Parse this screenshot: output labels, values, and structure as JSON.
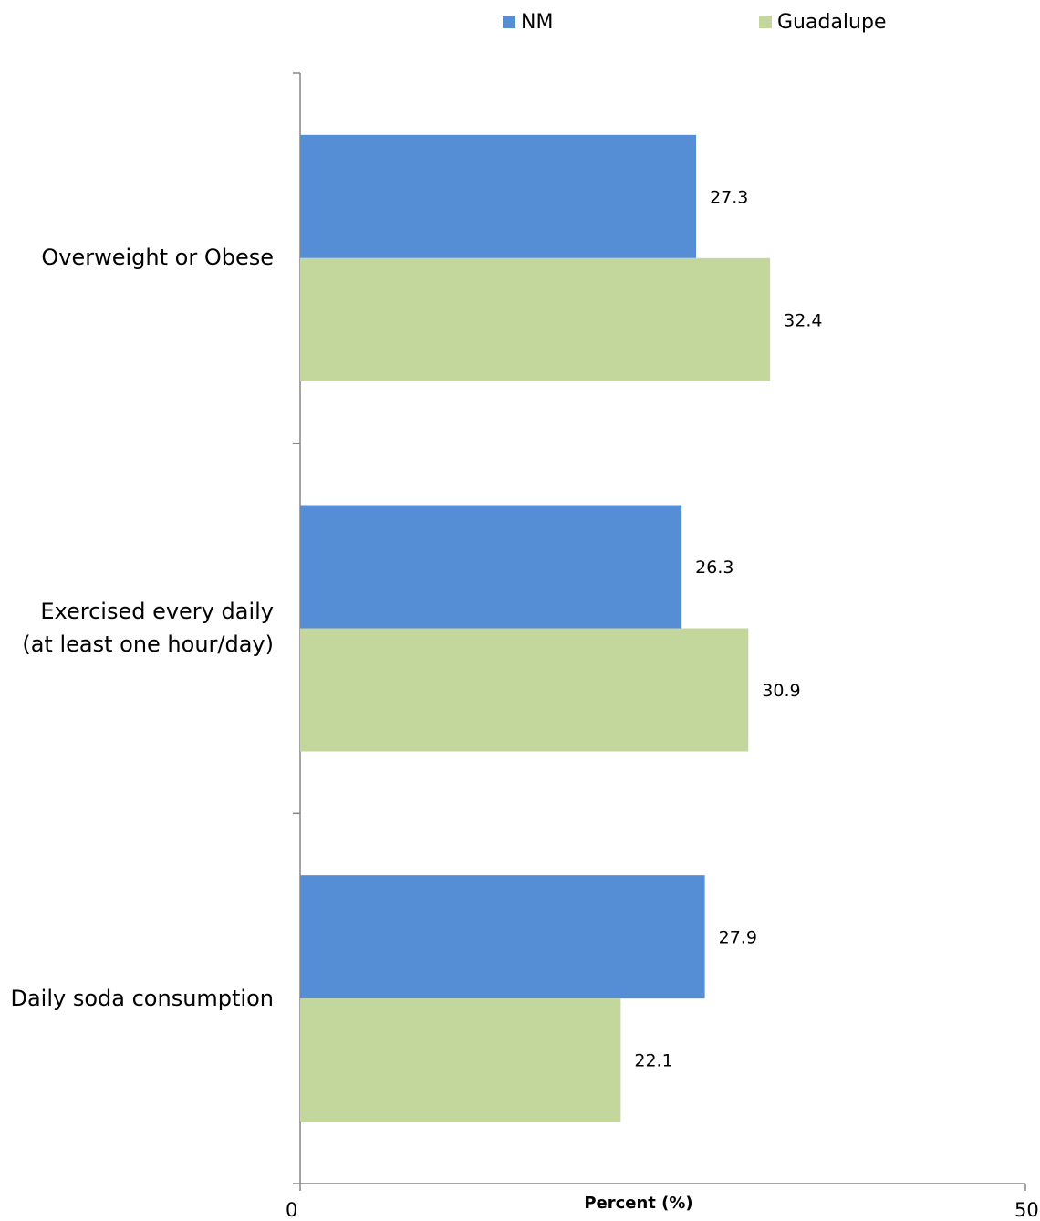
{
  "chart_data": {
    "type": "bar",
    "orientation": "horizontal",
    "categories": [
      "Overweight or Obese",
      "Exercised every daily\n(at least one hour/day)",
      "Daily soda consumption"
    ],
    "series": [
      {
        "name": "NM",
        "color": "#558ED5",
        "values": [
          27.3,
          26.3,
          27.9
        ]
      },
      {
        "name": "Guadalupe",
        "color": "#C3D69B",
        "values": [
          32.4,
          30.9,
          22.1
        ]
      }
    ],
    "xlabel": "Percent (%)",
    "ylabel": "",
    "xlim": [
      0,
      50
    ],
    "x_ticks": [
      "0",
      "50"
    ],
    "grid": false,
    "legend_position": "top"
  }
}
